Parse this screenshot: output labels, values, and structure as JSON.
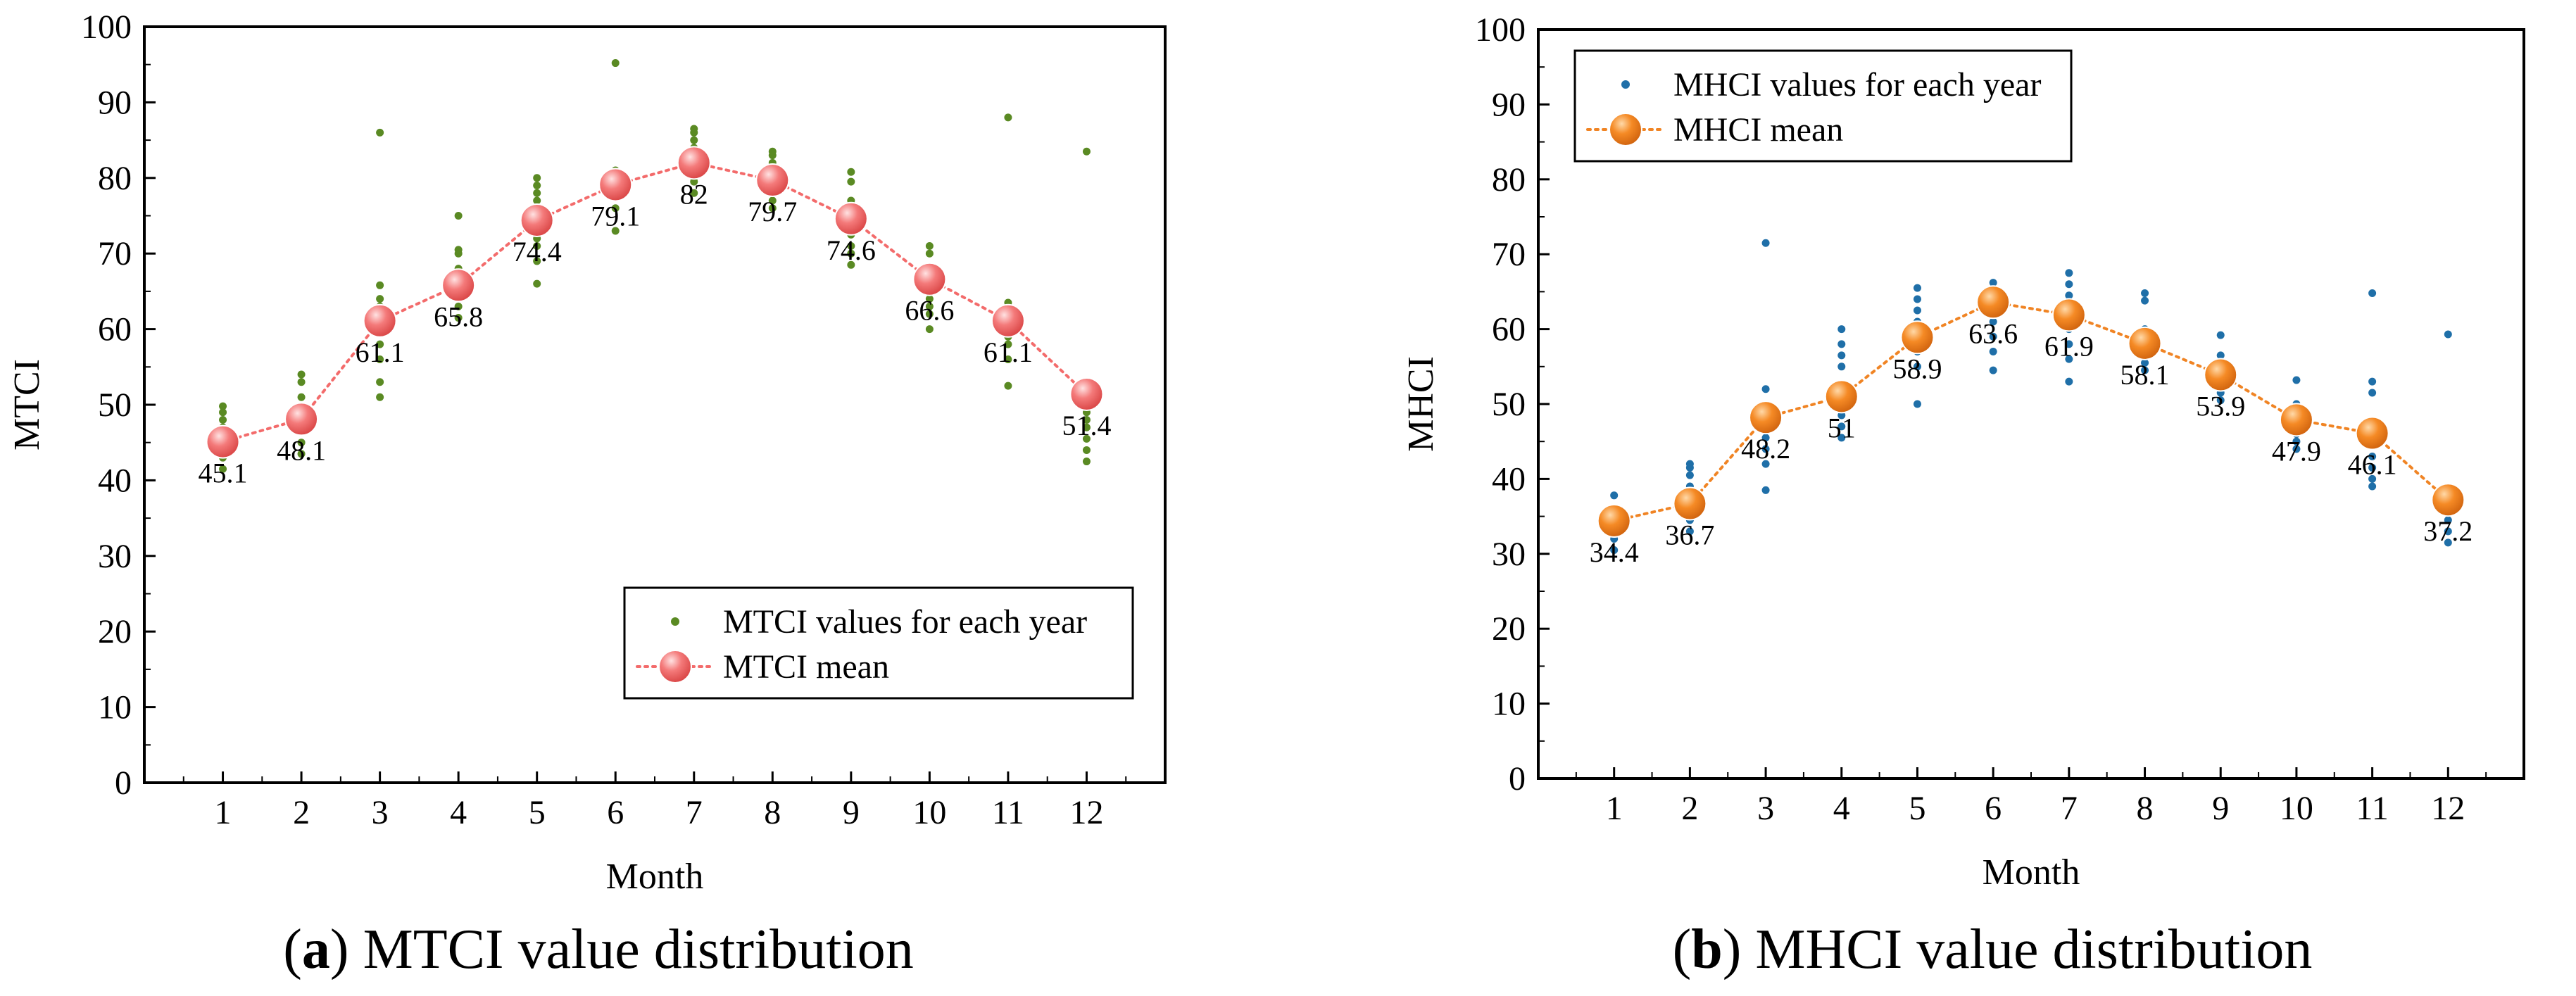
{
  "figure": {
    "panels": [
      {
        "caption_open": "(",
        "caption_letter": "a",
        "caption_close": ")",
        "caption_rest": " MTCI value distribution"
      },
      {
        "caption_open": "(",
        "caption_letter": "b",
        "caption_close": ")",
        "caption_rest": " MHCI value distribution"
      }
    ]
  },
  "colors": {
    "mtci_points": "#5a8a23",
    "mtci_mean": "#f26d6d",
    "mtci_line": "#f36b6b",
    "mhci_points": "#1f6fa8",
    "mhci_mean": "#f08424",
    "mhci_line": "#f08424"
  },
  "chart_data": [
    {
      "type": "scatter",
      "title": "",
      "xlabel": "Month",
      "ylabel": "MTCI",
      "xlim": [
        0,
        13
      ],
      "ylim": [
        0,
        100
      ],
      "x_ticks": [
        "1",
        "2",
        "3",
        "4",
        "5",
        "6",
        "7",
        "8",
        "9",
        "10",
        "11",
        "12"
      ],
      "y_ticks": [
        "0",
        "10",
        "20",
        "30",
        "40",
        "50",
        "60",
        "70",
        "80",
        "90",
        "100"
      ],
      "legend": {
        "position": "bottom-right",
        "points_label": "MTCI values for each year",
        "mean_label": "MTCI mean"
      },
      "yearly_points": [
        [
          41.5,
          43,
          44,
          45,
          46,
          47,
          48,
          49,
          49.8
        ],
        [
          43.5,
          45,
          46.5,
          47.5,
          48.5,
          51,
          53,
          54
        ],
        [
          51,
          53,
          56,
          58,
          60,
          61,
          62,
          63,
          64,
          65.8,
          86
        ],
        [
          61.5,
          63,
          64.5,
          65,
          66,
          67,
          68,
          70,
          70.5,
          75
        ],
        [
          66,
          69,
          71,
          72,
          73,
          74,
          75,
          76,
          77,
          78,
          79,
          80
        ],
        [
          73,
          76,
          77.5,
          78.5,
          79,
          79.5,
          80,
          81,
          95.2
        ],
        [
          78,
          79.5,
          80,
          81,
          82,
          83,
          84,
          85,
          86,
          86.5
        ],
        [
          76,
          77,
          78,
          79,
          80,
          81,
          82,
          83,
          83.5
        ],
        [
          68.5,
          70,
          71,
          72.5,
          74,
          75,
          76,
          77,
          79.5,
          80.8
        ],
        [
          60,
          62,
          63,
          64,
          65,
          66,
          67,
          68,
          70,
          71
        ],
        [
          52.5,
          56,
          58,
          59,
          60,
          61,
          62,
          63,
          63.5,
          88
        ],
        [
          42.5,
          44,
          45.5,
          47,
          48,
          49,
          50,
          51,
          52,
          83.5
        ]
      ],
      "mean_values": [
        45.1,
        48.1,
        61.1,
        65.8,
        74.4,
        79.1,
        82,
        79.7,
        74.6,
        66.6,
        61.1,
        51.4
      ],
      "mean_labels": [
        "45.1",
        "48.1",
        "61.1",
        "65.8",
        "74.4",
        "79.1",
        "82",
        "79.7",
        "74.6",
        "66.6",
        "61.1",
        "51.4"
      ]
    },
    {
      "type": "scatter",
      "title": "",
      "xlabel": "Month",
      "ylabel": "MHCI",
      "xlim": [
        0,
        13
      ],
      "ylim": [
        0,
        100
      ],
      "x_ticks": [
        "1",
        "2",
        "3",
        "4",
        "5",
        "6",
        "7",
        "8",
        "9",
        "10",
        "11",
        "12"
      ],
      "y_ticks": [
        "0",
        "10",
        "20",
        "30",
        "40",
        "50",
        "60",
        "70",
        "80",
        "90",
        "100"
      ],
      "legend": {
        "position": "top-left",
        "points_label": "MHCI values for each year",
        "mean_label": "MHCI mean"
      },
      "yearly_points": [
        [
          30.5,
          32,
          33,
          34,
          35,
          36,
          37.8
        ],
        [
          33,
          34.5,
          35.5,
          36.5,
          37.5,
          39,
          40.5,
          41.5,
          42
        ],
        [
          38.5,
          42,
          44,
          45.5,
          47,
          48,
          49.5,
          52,
          71.5
        ],
        [
          45.5,
          47,
          48.5,
          50,
          51,
          52.5,
          55,
          56.5,
          58,
          60
        ],
        [
          50,
          55,
          57,
          58,
          59,
          60,
          61,
          62.5,
          64,
          65.5
        ],
        [
          54.5,
          57,
          59,
          61,
          62,
          63,
          64,
          65,
          66.2
        ],
        [
          53,
          56,
          58,
          60,
          61,
          62,
          63,
          64.5,
          66,
          67.5
        ],
        [
          54.5,
          55.5,
          56.5,
          57.5,
          58,
          59,
          60,
          63.8,
          64.8
        ],
        [
          50.5,
          51.5,
          52.5,
          53.5,
          54.5,
          55.5,
          56.5,
          59.2
        ],
        [
          44,
          45,
          46,
          47,
          48,
          49,
          50,
          53.2
        ],
        [
          39,
          40,
          41.5,
          43,
          44.5,
          46,
          47.5,
          51.5,
          53,
          64.8
        ],
        [
          31.5,
          33,
          34.5,
          35.5,
          36.5,
          37.5,
          38.5,
          59.3
        ]
      ],
      "mean_values": [
        34.4,
        36.7,
        48.2,
        51,
        58.9,
        63.6,
        61.9,
        58.1,
        53.9,
        47.9,
        46.1,
        37.2
      ],
      "mean_labels": [
        "34.4",
        "36.7",
        "48.2",
        "51",
        "58.9",
        "63.6",
        "61.9",
        "58.1",
        "53.9",
        "47.9",
        "46.1",
        "37.2"
      ]
    }
  ]
}
